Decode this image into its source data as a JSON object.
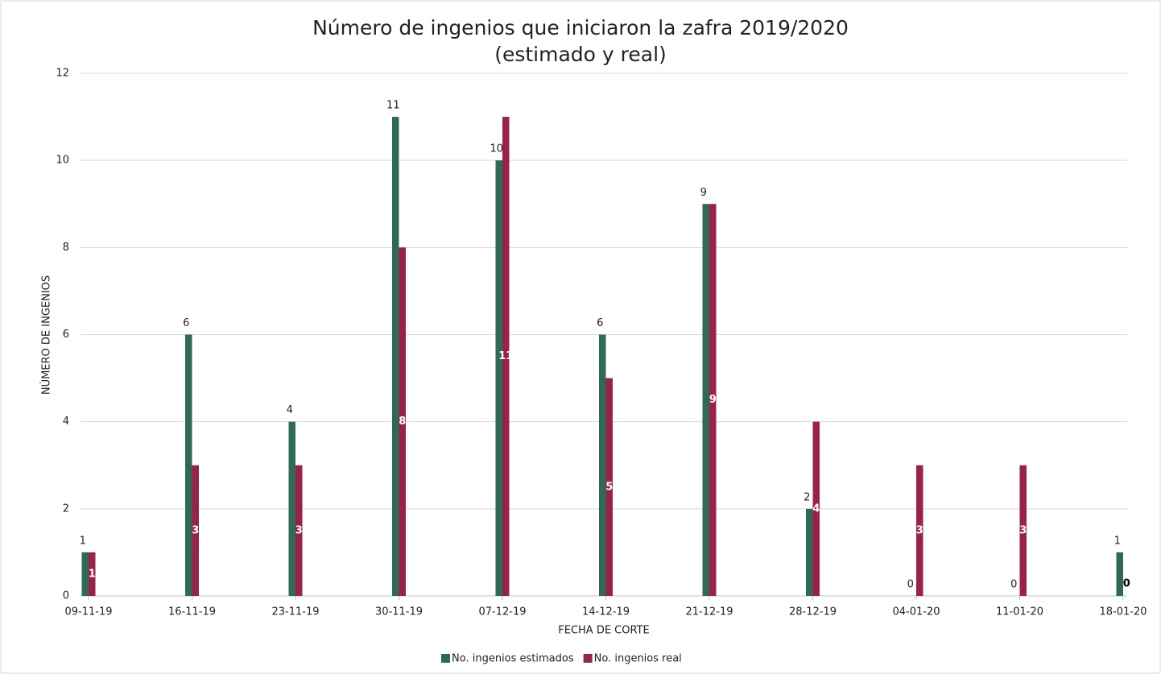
{
  "chart_data": {
    "type": "bar",
    "title": "Número de ingenios que iniciaron la zafra 2019/2020",
    "subtitle": "(estimado y real)",
    "x_label": "FECHA DE CORTE",
    "y_label": "NÚMERO DE INGENIOS",
    "categories": [
      "09-11-19",
      "16-11-19",
      "23-11-19",
      "30-11-19",
      "07-12-19",
      "14-12-19",
      "21-12-19",
      "28-12-19",
      "04-01-20",
      "11-01-20",
      "18-01-20"
    ],
    "series": [
      {
        "name": "No. ingenios estimados",
        "color": "#2e6b55",
        "values": [
          1,
          6,
          4,
          11,
          10,
          6,
          9,
          2,
          0,
          0,
          1
        ]
      },
      {
        "name": "No. ingenios real",
        "color": "#9b2247",
        "values": [
          1,
          3,
          3,
          8,
          11,
          5,
          9,
          4,
          3,
          3,
          0
        ]
      }
    ],
    "ylim": [
      0,
      12
    ],
    "yticks": [
      0,
      2,
      4,
      6,
      8,
      10,
      12
    ],
    "grid": true,
    "legend": "bottom"
  }
}
